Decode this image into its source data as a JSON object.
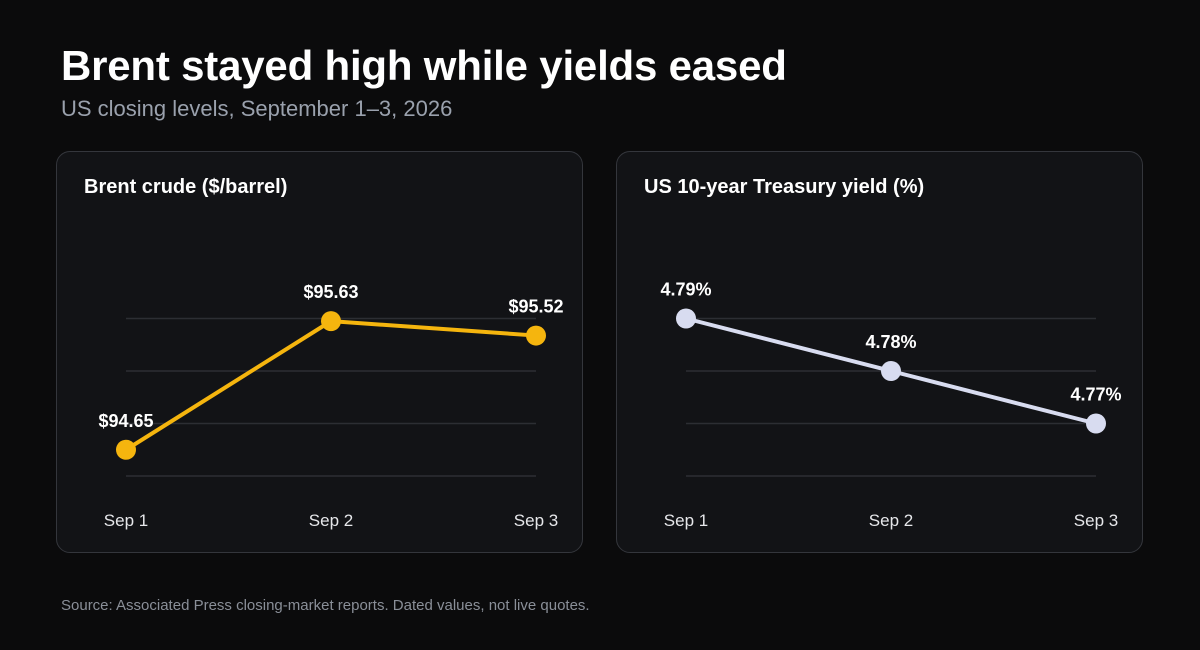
{
  "header": {
    "title": "Brent stayed high while yields eased",
    "subtitle": "US closing levels, September 1–3, 2026"
  },
  "footer": {
    "source": "Source: Associated Press closing-market reports. Dated values, not live quotes."
  },
  "chart_data": [
    {
      "type": "line",
      "title": "Brent crude ($/barrel)",
      "categories": [
        "Sep 1",
        "Sep 2",
        "Sep 3"
      ],
      "values": [
        94.65,
        95.63,
        95.52
      ],
      "value_labels": [
        "$94.65",
        "$95.63",
        "$95.52"
      ],
      "ylim": [
        94.45,
        96.05
      ],
      "gridlines": [
        94.45,
        94.85,
        95.25,
        95.65
      ],
      "color": "#f5b50e",
      "grid": true
    },
    {
      "type": "line",
      "title": "US 10-year Treasury yield (%)",
      "categories": [
        "Sep 1",
        "Sep 2",
        "Sep 3"
      ],
      "values": [
        4.79,
        4.78,
        4.77
      ],
      "value_labels": [
        "4.79%",
        "4.78%",
        "4.77%"
      ],
      "ylim": [
        4.76,
        4.8
      ],
      "gridlines": [
        4.76,
        4.77,
        4.78,
        4.79
      ],
      "color": "#d8dcf0",
      "grid": true
    }
  ]
}
